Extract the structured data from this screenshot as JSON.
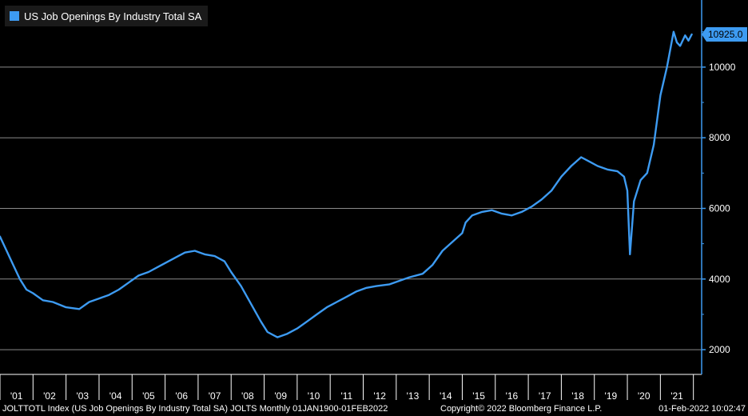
{
  "legend": {
    "label": "US Job Openings By Industry Total SA",
    "color": "#3d9bf2"
  },
  "footer": {
    "description": "JOLTTOTL Index (US Job Openings By Industry Total SA) JOLTS  Monthly 01JAN1900-01FEB2022",
    "copyright": "Copyright© 2022 Bloomberg Finance L.P.",
    "timestamp": "01-Feb-2022 10:02:47"
  },
  "chart_data": {
    "type": "line",
    "title": "",
    "xlabel": "",
    "ylabel": "",
    "ylim": [
      1300,
      11900
    ],
    "xlim": [
      2001.0,
      2022.25
    ],
    "yticks": [
      2000,
      4000,
      6000,
      8000,
      10000
    ],
    "ytick_labels": [
      "2000",
      "4000",
      "6000",
      "8000",
      "10000"
    ],
    "xtick_labels": [
      "'01",
      "'02",
      "'03",
      "'04",
      "'05",
      "'06",
      "'07",
      "'08",
      "'09",
      "'10",
      "'11",
      "'12",
      "'13",
      "'14",
      "'15",
      "'16",
      "'17",
      "'18",
      "'19",
      "'20",
      "'21"
    ],
    "last_value_label": "10925.0",
    "last_value": 10925,
    "grid": true,
    "line_color": "#3d9bf2",
    "series": [
      {
        "x": [
          2001.0,
          2001.2,
          2001.4,
          2001.6,
          2001.8,
          2002.0,
          2002.3,
          2002.6,
          2003.0,
          2003.4,
          2003.7,
          2004.0,
          2004.3,
          2004.6,
          2004.9,
          2005.2,
          2005.5,
          2005.8,
          2006.1,
          2006.4,
          2006.6,
          2006.9,
          2007.2,
          2007.5,
          2007.8,
          2008.0,
          2008.3,
          2008.6,
          2008.9,
          2009.1,
          2009.4,
          2009.7,
          2010.0,
          2010.3,
          2010.6,
          2010.9,
          2011.2,
          2011.5,
          2011.8,
          2012.1,
          2012.4,
          2012.8,
          2013.1,
          2013.4,
          2013.8,
          2014.1,
          2014.4,
          2014.7,
          2015.0,
          2015.1,
          2015.3,
          2015.6,
          2015.9,
          2016.2,
          2016.5,
          2016.8,
          2017.1,
          2017.4,
          2017.7,
          2018.0,
          2018.3,
          2018.6,
          2018.9,
          2019.1,
          2019.4,
          2019.7,
          2019.9,
          2020.0,
          2020.08,
          2020.2,
          2020.4,
          2020.6,
          2020.8,
          2021.0,
          2021.2,
          2021.4,
          2021.5,
          2021.6,
          2021.75,
          2021.85,
          2021.95
        ],
        "y": [
          5200,
          4800,
          4400,
          4000,
          3700,
          3600,
          3400,
          3350,
          3200,
          3150,
          3350,
          3450,
          3550,
          3700,
          3900,
          4100,
          4200,
          4350,
          4500,
          4650,
          4750,
          4800,
          4700,
          4650,
          4500,
          4200,
          3800,
          3300,
          2800,
          2500,
          2350,
          2450,
          2600,
          2800,
          3000,
          3200,
          3350,
          3500,
          3650,
          3750,
          3800,
          3850,
          3950,
          4050,
          4150,
          4400,
          4800,
          5050,
          5300,
          5600,
          5800,
          5900,
          5950,
          5850,
          5800,
          5900,
          6050,
          6250,
          6500,
          6900,
          7200,
          7450,
          7300,
          7200,
          7100,
          7050,
          6900,
          6500,
          4700,
          6200,
          6800,
          7000,
          7800,
          9200,
          10000,
          11000,
          10700,
          10600,
          10900,
          10750,
          10925
        ]
      }
    ]
  }
}
